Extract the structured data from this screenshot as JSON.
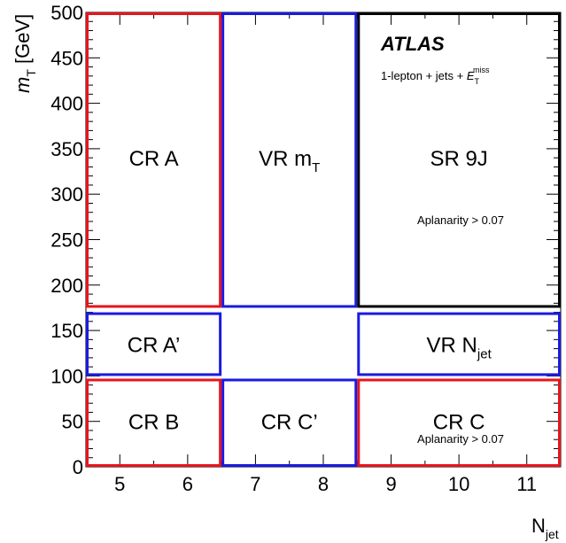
{
  "chart_data": {
    "type": "region-diagram",
    "x": {
      "label": "N",
      "label_sub": "jet",
      "range": [
        4.5,
        11.5
      ],
      "ticks": [
        "5",
        "6",
        "7",
        "8",
        "9",
        "10",
        "11"
      ]
    },
    "y": {
      "label_main": "m",
      "label_sub": "T",
      "label_unit": " [GeV]",
      "range": [
        0,
        500
      ],
      "ticks": [
        "0",
        "50",
        "100",
        "150",
        "200",
        "250",
        "300",
        "350",
        "400",
        "450",
        "500"
      ]
    },
    "regions": [
      {
        "id": "cr-a",
        "label": "CR A",
        "sub": "",
        "color": "#e8141c",
        "x": [
          4.5,
          6.5
        ],
        "y": [
          175,
          500
        ]
      },
      {
        "id": "cr-a-prime",
        "label": "CR A’",
        "sub": "",
        "color": "#1a1ae0",
        "x": [
          4.5,
          6.5
        ],
        "y": [
          100,
          170
        ]
      },
      {
        "id": "cr-b",
        "label": "CR B",
        "sub": "",
        "color": "#e8141c",
        "x": [
          4.5,
          6.5
        ],
        "y": [
          0,
          97
        ]
      },
      {
        "id": "vr-mt",
        "label": "VR m",
        "sub": "T",
        "color": "#1a1ae0",
        "x": [
          6.5,
          8.5
        ],
        "y": [
          175,
          500
        ]
      },
      {
        "id": "cr-c-prime",
        "label": "CR C’",
        "sub": "",
        "color": "#1a1ae0",
        "x": [
          6.5,
          8.5
        ],
        "y": [
          0,
          97
        ]
      },
      {
        "id": "sr-9j",
        "label": "SR 9J",
        "sub": "",
        "color": "#000000",
        "x": [
          8.5,
          11.5
        ],
        "y": [
          175,
          500
        ]
      },
      {
        "id": "vr-njet",
        "label": "VR N",
        "sub": "jet",
        "color": "#1a1ae0",
        "x": [
          8.5,
          11.5
        ],
        "y": [
          100,
          170
        ]
      },
      {
        "id": "cr-c",
        "label": "CR C",
        "sub": "",
        "color": "#e8141c",
        "x": [
          8.5,
          11.5
        ],
        "y": [
          0,
          97
        ]
      }
    ],
    "annotations": {
      "experiment": "ATLAS",
      "channel": "1-lepton + jets + ",
      "channel_symbol": "E",
      "channel_sub": "T",
      "channel_sup": "miss",
      "sr_cut": "Aplanarity > 0.07",
      "crc_cut": "Aplanarity > 0.07"
    }
  }
}
